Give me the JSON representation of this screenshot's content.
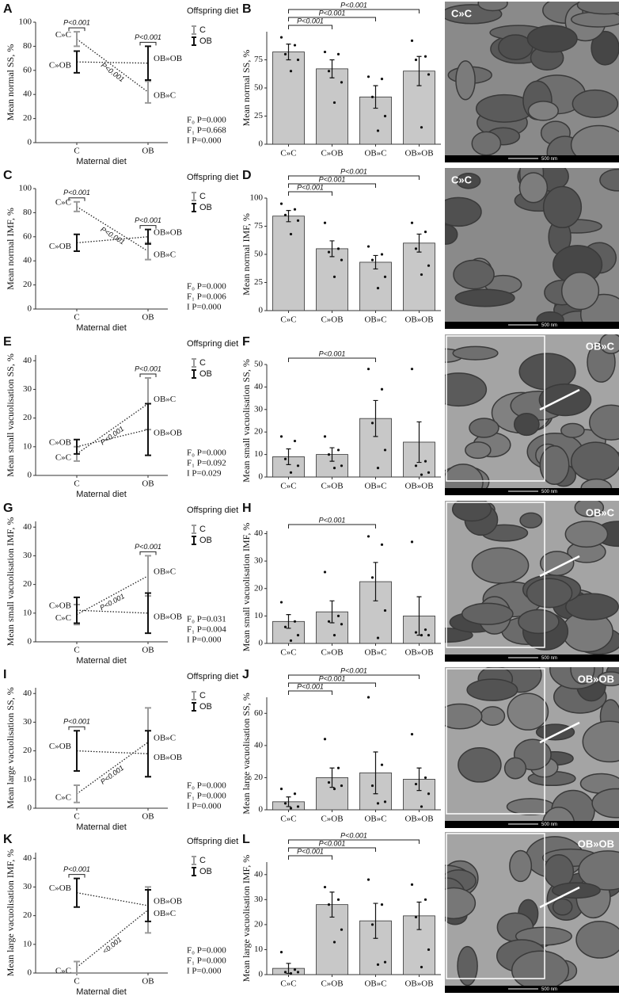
{
  "chart_data": [
    {
      "type": "line",
      "panel": "A",
      "y_label": "Mean normal SS, %",
      "x_label": "Maternal diet",
      "categories": [
        "C",
        "OB"
      ],
      "ylim": [
        0,
        100
      ],
      "yticks": [
        0,
        20,
        40,
        60,
        80,
        100
      ],
      "legend_title": "Offspring diet",
      "series": [
        {
          "name": "C",
          "color": "#9a9a9a",
          "values": [
            86,
            42
          ],
          "errors": [
            6,
            9
          ],
          "point_labels": [
            "C»C",
            "OB»C"
          ]
        },
        {
          "name": "OB",
          "color": "#111111",
          "values": [
            67,
            66
          ],
          "errors": [
            9,
            14
          ],
          "point_labels": [
            "C»OB",
            "OB»OB"
          ]
        }
      ],
      "annotations": [
        "P<0.001",
        "P<0.001",
        "P<0.001"
      ],
      "stats": [
        "F₀ P=0.000",
        "F₁ P=0.668",
        "I P=0.000"
      ]
    },
    {
      "type": "bar",
      "panel": "B",
      "y_label": "Mean normal SS, %",
      "categories": [
        "C»C",
        "C»OB",
        "OB»C",
        "OB»OB"
      ],
      "values": [
        82,
        67,
        42,
        65
      ],
      "errors": [
        7,
        8,
        10,
        13
      ],
      "points": [
        [
          95,
          88,
          80,
          75,
          65
        ],
        [
          82,
          80,
          65,
          55,
          37
        ],
        [
          60,
          58,
          42,
          25,
          12
        ],
        [
          92,
          78,
          75,
          62,
          15
        ]
      ],
      "color": "#c8c8c8",
      "ylim": [
        0,
        100
      ],
      "yticks": [
        0,
        25,
        50,
        75
      ],
      "annotations": [
        "P<0.001",
        "P<0.001",
        "P<0.001"
      ]
    },
    {
      "type": "line",
      "panel": "C",
      "y_label": "Mean normal IMF, %",
      "x_label": "Maternal diet",
      "categories": [
        "C",
        "OB"
      ],
      "ylim": [
        0,
        100
      ],
      "yticks": [
        0,
        20,
        40,
        60,
        80,
        100
      ],
      "legend_title": "Offspring diet",
      "series": [
        {
          "name": "C",
          "color": "#9a9a9a",
          "values": [
            85,
            48
          ],
          "errors": [
            4,
            7
          ],
          "point_labels": [
            "C»C",
            "OB»C"
          ]
        },
        {
          "name": "OB",
          "color": "#111111",
          "values": [
            55,
            60
          ],
          "errors": [
            7,
            6
          ],
          "point_labels": [
            "C»OB",
            "OB»OB"
          ]
        }
      ],
      "annotations": [
        "P<0.001",
        "P<0.001",
        "P<0.001"
      ],
      "stats": [
        "F₀ P=0.000",
        "F₁ P=0.006",
        "I P=0.000"
      ]
    },
    {
      "type": "bar",
      "panel": "D",
      "y_label": "Mean normal IMF, %",
      "categories": [
        "C»C",
        "C»OB",
        "OB»C",
        "OB»OB"
      ],
      "values": [
        84,
        55,
        43,
        60
      ],
      "errors": [
        5,
        7,
        6,
        8
      ],
      "points": [
        [
          95,
          90,
          85,
          80,
          68
        ],
        [
          78,
          55,
          52,
          45,
          30
        ],
        [
          57,
          50,
          45,
          30,
          20
        ],
        [
          78,
          70,
          55,
          40,
          32
        ]
      ],
      "color": "#c8c8c8",
      "ylim": [
        0,
        100
      ],
      "yticks": [
        0,
        25,
        50,
        75,
        100
      ],
      "annotations": [
        "P<0.001",
        "P<0.001",
        "P<0.001"
      ]
    },
    {
      "type": "line",
      "panel": "E",
      "y_label": "Mean small vacuolisation SS, %",
      "x_label": "Maternal diet",
      "categories": [
        "C",
        "OB"
      ],
      "ylim": [
        0,
        42
      ],
      "yticks": [
        0,
        10,
        20,
        30,
        40
      ],
      "legend_title": "Offspring diet",
      "series": [
        {
          "name": "C",
          "color": "#9a9a9a",
          "values": [
            7.5,
            25
          ],
          "errors": [
            2.5,
            9
          ],
          "point_labels": [
            "C»C",
            "OB»C"
          ]
        },
        {
          "name": "OB",
          "color": "#111111",
          "values": [
            10,
            16
          ],
          "errors": [
            2.5,
            9
          ],
          "point_labels": [
            "C»OB",
            "OB»OB"
          ]
        }
      ],
      "annotations": [
        "P<0.001",
        "P<0.001"
      ],
      "stats": [
        "F₀ P=0.000",
        "F₁ P=0.092",
        "I P=0.029"
      ]
    },
    {
      "type": "bar",
      "panel": "F",
      "y_label": "Mean small vacuolisation SS, %",
      "categories": [
        "C»C",
        "C»OB",
        "OB»C",
        "OB»OB"
      ],
      "values": [
        9,
        10,
        26,
        15.5
      ],
      "errors": [
        3.5,
        3,
        8,
        9
      ],
      "points": [
        [
          18,
          16,
          8,
          5,
          2
        ],
        [
          18,
          12,
          10,
          5,
          4
        ],
        [
          48,
          39,
          24,
          12,
          4
        ],
        [
          48,
          7,
          5,
          2,
          1
        ]
      ],
      "color": "#c8c8c8",
      "ylim": [
        0,
        50
      ],
      "yticks": [
        0,
        10,
        20,
        30,
        40,
        50
      ],
      "annotations": [
        "P<0.001"
      ]
    },
    {
      "type": "line",
      "panel": "G",
      "y_label": "Mean small vacuolisation IMF, %",
      "x_label": "Maternal diet",
      "categories": [
        "C",
        "OB"
      ],
      "ylim": [
        0,
        42
      ],
      "yticks": [
        0,
        10,
        20,
        30,
        40
      ],
      "legend_title": "Offspring diet",
      "series": [
        {
          "name": "C",
          "color": "#9a9a9a",
          "values": [
            9.5,
            23
          ],
          "errors": [
            3.5,
            7
          ],
          "point_labels": [
            "C»C",
            "OB»C"
          ]
        },
        {
          "name": "OB",
          "color": "#111111",
          "values": [
            11,
            10
          ],
          "errors": [
            4.5,
            7
          ],
          "point_labels": [
            "C»OB",
            "OB»OB"
          ]
        }
      ],
      "annotations": [
        "P<0.001",
        "P<0.001"
      ],
      "stats": [
        "F₀ P=0.031",
        "F₁ P=0.004",
        "I P=0.000"
      ]
    },
    {
      "type": "bar",
      "panel": "H",
      "y_label": "Mean small vacuolisation IMF, %",
      "categories": [
        "C»C",
        "C»OB",
        "OB»C",
        "OB»OB"
      ],
      "values": [
        8,
        11.5,
        22.5,
        10
      ],
      "errors": [
        2.5,
        4,
        7,
        7
      ],
      "points": [
        [
          15,
          8,
          6,
          3,
          1
        ],
        [
          26,
          10,
          8,
          7,
          3
        ],
        [
          39,
          36,
          24,
          12,
          2
        ],
        [
          37,
          5,
          4,
          3,
          3
        ]
      ],
      "color": "#c8c8c8",
      "ylim": [
        0,
        41
      ],
      "yticks": [
        0,
        10,
        20,
        30,
        40
      ],
      "annotations": [
        "P<0.001"
      ]
    },
    {
      "type": "line",
      "panel": "I",
      "y_label": "Mean large vacuolisation SS, %",
      "x_label": "Maternal diet",
      "categories": [
        "C",
        "OB"
      ],
      "ylim": [
        0,
        42
      ],
      "yticks": [
        0,
        10,
        20,
        30,
        40
      ],
      "legend_title": "Offspring diet",
      "series": [
        {
          "name": "C",
          "color": "#9a9a9a",
          "values": [
            5,
            23
          ],
          "errors": [
            3,
            12
          ],
          "point_labels": [
            "C»C",
            "OB»C"
          ]
        },
        {
          "name": "OB",
          "color": "#111111",
          "values": [
            20,
            19
          ],
          "errors": [
            7,
            8
          ],
          "point_labels": [
            "C»OB",
            "OB»OB"
          ]
        }
      ],
      "annotations": [
        "P<0.001",
        "P<0.001"
      ],
      "stats": [
        "F₀ P=0.000",
        "F₁ P=0.000",
        "I P=0.000"
      ]
    },
    {
      "type": "bar",
      "panel": "J",
      "y_label": "Mean large vacuolisation SS, %",
      "categories": [
        "C»C",
        "C»OB",
        "OB»C",
        "OB»OB"
      ],
      "values": [
        5,
        20,
        23,
        19
      ],
      "errors": [
        3,
        6,
        13,
        7
      ],
      "points": [
        [
          13,
          10,
          4,
          2,
          1
        ],
        [
          44,
          26,
          17,
          15,
          13
        ],
        [
          70,
          28,
          15,
          5,
          4
        ],
        [
          47,
          20,
          16,
          10,
          2
        ]
      ],
      "color": "#c8c8c8",
      "ylim": [
        0,
        70
      ],
      "yticks": [
        0,
        20,
        40,
        60
      ],
      "annotations": [
        "P<0.001",
        "P<0.001",
        "P<0.001"
      ]
    },
    {
      "type": "line",
      "panel": "K",
      "y_label": "Mean large vacuolisation IMF, %",
      "x_label": "Maternal diet",
      "categories": [
        "C",
        "OB"
      ],
      "ylim": [
        0,
        42
      ],
      "yticks": [
        0,
        10,
        20,
        30,
        40
      ],
      "legend_title": "Offspring diet",
      "series": [
        {
          "name": "C",
          "color": "#9a9a9a",
          "values": [
            2,
            22
          ],
          "errors": [
            2,
            8
          ],
          "point_labels": [
            "C»C",
            "OB»C"
          ]
        },
        {
          "name": "OB",
          "color": "#111111",
          "values": [
            28,
            23.5
          ],
          "errors": [
            5,
            5.5
          ],
          "point_labels": [
            "C»OB",
            "OB»OB"
          ]
        }
      ],
      "annotations": [
        "P<0.001",
        "<0.001"
      ],
      "stats": [
        "F₀ P=0.000",
        "F₁ P=0.000",
        "I P=0.000"
      ]
    },
    {
      "type": "bar",
      "panel": "L",
      "y_label": "Mean large vacuolisation IMF, %",
      "categories": [
        "C»C",
        "C»OB",
        "OB»C",
        "OB»OB"
      ],
      "values": [
        2.5,
        28,
        21.5,
        23.5
      ],
      "errors": [
        2,
        5,
        7,
        5.5
      ],
      "points": [
        [
          9,
          2,
          1,
          1,
          0.5
        ],
        [
          35,
          30,
          28,
          18,
          13
        ],
        [
          38,
          28,
          20,
          5,
          4
        ],
        [
          36,
          30,
          23,
          10,
          3
        ]
      ],
      "color": "#c8c8c8",
      "ylim": [
        0,
        45
      ],
      "yticks": [
        0,
        10,
        20,
        30,
        40
      ],
      "annotations": [
        "P<0.001",
        "P<0.001",
        "P<0.001"
      ]
    }
  ],
  "micrographs": [
    {
      "label": "C»C",
      "scale": "500 nm"
    },
    {
      "label": "C»C",
      "scale": "500 nm"
    },
    {
      "label": "OB»C",
      "scale": "500 nm"
    },
    {
      "label": "OB»C",
      "scale": "500 nm"
    },
    {
      "label": "OB»OB",
      "scale": "500 nm"
    },
    {
      "label": "OB»OB",
      "scale": "500 nm"
    }
  ]
}
